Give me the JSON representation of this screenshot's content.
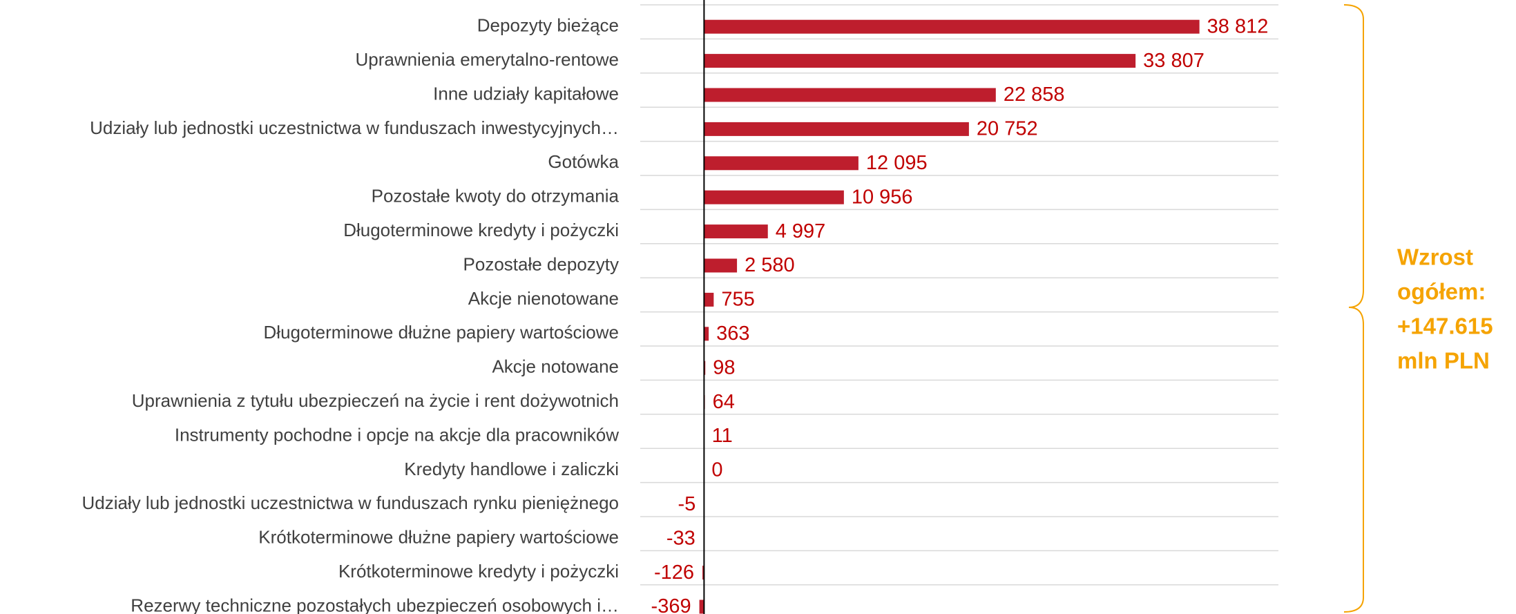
{
  "chart_data": {
    "type": "bar",
    "orientation": "horizontal",
    "categories": [
      "Depozyty bieżące",
      "Uprawnienia emerytalno-rentowe",
      "Inne udziały kapitałowe",
      "Udziały lub jednostki uczestnictwa w funduszach inwestycyjnych…",
      "Gotówka",
      "Pozostałe kwoty do otrzymania",
      "Długoterminowe kredyty i pożyczki",
      "Pozostałe depozyty",
      "Akcje nienotowane",
      "Długoterminowe dłużne papiery wartościowe",
      "Akcje notowane",
      "Uprawnienia z tytułu ubezpieczeń na życie i rent dożywotnich",
      "Instrumenty pochodne i opcje na akcje dla pracowników",
      "Kredyty handlowe i zaliczki",
      "Udziały lub jednostki uczestnictwa w funduszach rynku pieniężnego",
      "Krótkoterminowe dłużne papiery wartościowe",
      "Krótkoterminowe kredyty i pożyczki",
      "Rezerwy techniczne pozostałych ubezpieczeń osobowych i…"
    ],
    "values": [
      38812,
      33807,
      22858,
      20752,
      12095,
      10956,
      4997,
      2580,
      755,
      363,
      98,
      64,
      11,
      0,
      -5,
      -33,
      -126,
      -369
    ],
    "value_labels": [
      "38 812",
      "33 807",
      "22 858",
      "20 752",
      "12 095",
      "10 956",
      "4 997",
      "2 580",
      "755",
      "363",
      "98",
      "64",
      "11",
      "0",
      "-5",
      "-33",
      "-126",
      "-369"
    ],
    "color": "#be1e2d",
    "label_color": "#c00000",
    "xlim": [
      -5000,
      45000
    ],
    "grid": true,
    "annotation": {
      "lines": [
        "Wzrost",
        "ogółem:",
        "+147.615",
        "mln PLN"
      ],
      "color": "#f5a300"
    }
  }
}
